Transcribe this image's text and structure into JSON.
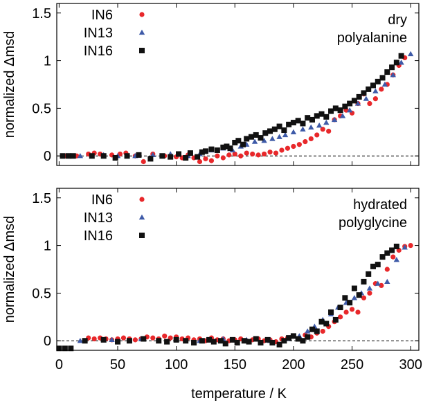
{
  "figure": {
    "xlabel": "temperature / K"
  },
  "chart_data": [
    {
      "type": "scatter",
      "annotation": [
        "dry",
        "polyalanine"
      ],
      "xlabel": "",
      "ylabel": "normalized Δmsd",
      "xlim": [
        -2,
        307
      ],
      "ylim": [
        -0.1,
        1.6
      ],
      "xticks": [
        "0",
        "50",
        "100",
        "150",
        "200",
        "250",
        "300"
      ],
      "xtick_values": [
        0,
        50,
        100,
        150,
        200,
        250,
        300
      ],
      "yticks": [
        "0",
        "0.5",
        "1",
        "1.5"
      ],
      "ytick_values": [
        0,
        0.5,
        1,
        1.5
      ],
      "reference_line": 0,
      "legend_position": "top-left",
      "series": [
        {
          "name": "IN6",
          "color": "#e8282b",
          "marker": "circle",
          "x": [
            5,
            15,
            25,
            30,
            35,
            45,
            52,
            57,
            65,
            72,
            80,
            90,
            100,
            105,
            110,
            115,
            120,
            125,
            130,
            135,
            140,
            145,
            150,
            155,
            160,
            165,
            170,
            175,
            180,
            185,
            190,
            195,
            200,
            205,
            210,
            215,
            220,
            225,
            230,
            235,
            240,
            245,
            250,
            255,
            260,
            265,
            270,
            275,
            280,
            285,
            290,
            295
          ],
          "y": [
            0.0,
            0.0,
            0.02,
            0.03,
            0.02,
            0.01,
            0.02,
            0.03,
            0.0,
            -0.06,
            0.02,
            0.0,
            -0.01,
            -0.02,
            0.01,
            -0.02,
            -0.06,
            -0.03,
            -0.05,
            0.0,
            -0.02,
            0.01,
            0.02,
            0.0,
            0.03,
            0.02,
            0.01,
            0.02,
            0.04,
            0.03,
            0.06,
            0.08,
            0.1,
            0.12,
            0.15,
            0.18,
            0.22,
            0.28,
            0.26,
            0.38,
            0.42,
            0.48,
            0.45,
            0.55,
            0.65,
            0.55,
            0.6,
            0.7,
            0.75,
            0.85,
            0.95,
            1.03
          ]
        },
        {
          "name": "IN13",
          "color": "#3e5aa8",
          "marker": "triangle",
          "x": [
            18,
            38,
            50,
            65,
            80,
            95,
            110,
            120,
            130,
            140,
            148,
            155,
            160,
            167,
            175,
            182,
            188,
            193,
            200,
            208,
            215,
            222,
            228,
            235,
            242,
            248,
            255,
            262,
            270,
            278,
            285,
            292,
            300
          ],
          "y": [
            0.0,
            0.01,
            0.0,
            0.0,
            0.01,
            0.02,
            0.0,
            0.02,
            0.06,
            0.08,
            0.06,
            0.1,
            0.12,
            0.15,
            0.16,
            0.18,
            0.2,
            0.22,
            0.25,
            0.28,
            0.3,
            0.32,
            0.35,
            0.38,
            0.42,
            0.48,
            0.55,
            0.6,
            0.68,
            0.75,
            0.85,
            0.98,
            1.07
          ]
        },
        {
          "name": "IN16",
          "color": "#111111",
          "marker": "square",
          "x": [
            3,
            8,
            12,
            28,
            38,
            48,
            58,
            68,
            78,
            88,
            95,
            102,
            108,
            112,
            118,
            122,
            125,
            130,
            135,
            140,
            143,
            146,
            150,
            153,
            157,
            160,
            164,
            168,
            172,
            176,
            180,
            184,
            188,
            192,
            196,
            200,
            204,
            208,
            212,
            216,
            220,
            224,
            228,
            232,
            236,
            240,
            244,
            248,
            252,
            256,
            260,
            264,
            268,
            272,
            276,
            280,
            284,
            288,
            292
          ],
          "y": [
            0.0,
            0.0,
            0.0,
            0.0,
            0.0,
            -0.02,
            0.0,
            0.01,
            -0.03,
            0.0,
            -0.01,
            0.02,
            -0.02,
            0.03,
            -0.01,
            0.04,
            0.05,
            0.07,
            0.06,
            0.09,
            0.1,
            0.08,
            0.14,
            0.16,
            0.12,
            0.18,
            0.2,
            0.22,
            0.19,
            0.24,
            0.26,
            0.28,
            0.31,
            0.27,
            0.33,
            0.35,
            0.37,
            0.34,
            0.4,
            0.38,
            0.42,
            0.44,
            0.41,
            0.47,
            0.5,
            0.48,
            0.52,
            0.55,
            0.58,
            0.62,
            0.66,
            0.7,
            0.74,
            0.78,
            0.82,
            0.88,
            0.93,
            0.98,
            1.05
          ]
        }
      ]
    },
    {
      "type": "scatter",
      "annotation": [
        "hydrated",
        "polyglycine"
      ],
      "xlabel": "temperature / K",
      "ylabel": "normalized Δmsd",
      "xlim": [
        -2,
        307
      ],
      "ylim": [
        -0.1,
        1.6
      ],
      "xticks": [
        "0",
        "50",
        "100",
        "150",
        "200",
        "250",
        "300"
      ],
      "xtick_values": [
        0,
        50,
        100,
        150,
        200,
        250,
        300
      ],
      "yticks": [
        "0",
        "0.5",
        "1",
        "1.5"
      ],
      "ytick_values": [
        0,
        0.5,
        1,
        1.5
      ],
      "reference_line": 0,
      "legend_position": "top-left",
      "series": [
        {
          "name": "IN6",
          "color": "#e8282b",
          "marker": "circle",
          "x": [
            25,
            30,
            35,
            40,
            45,
            50,
            55,
            60,
            65,
            70,
            75,
            80,
            85,
            90,
            95,
            100,
            105,
            110,
            115,
            120,
            125,
            130,
            135,
            140,
            145,
            150,
            155,
            160,
            165,
            170,
            175,
            180,
            185,
            190,
            195,
            200,
            205,
            210,
            215,
            220,
            225,
            230,
            235,
            240,
            245,
            250,
            255,
            260,
            265,
            270,
            275,
            280,
            285,
            290,
            295,
            300
          ],
          "y": [
            0.03,
            0.02,
            0.03,
            0.02,
            0.01,
            0.02,
            0.03,
            0.02,
            0.01,
            0.02,
            0.04,
            0.03,
            0.02,
            0.05,
            0.03,
            0.04,
            0.02,
            0.03,
            0.01,
            0.02,
            0.0,
            0.03,
            0.01,
            0.02,
            0.0,
            0.01,
            0.02,
            0.0,
            0.01,
            0.02,
            0.0,
            0.01,
            -0.01,
            0.02,
            0.03,
            0.05,
            0.02,
            0.06,
            0.04,
            0.08,
            0.1,
            0.15,
            0.2,
            0.25,
            0.3,
            0.33,
            0.3,
            0.45,
            0.5,
            0.6,
            0.58,
            0.75,
            0.88,
            0.95,
            0.99,
            1.0
          ]
        },
        {
          "name": "IN13",
          "color": "#3e5aa8",
          "marker": "triangle",
          "x": [
            18,
            45,
            70,
            100,
            120,
            140,
            160,
            180,
            195,
            205,
            212,
            218,
            225,
            232,
            238,
            245,
            252,
            258,
            265,
            272,
            280,
            288,
            295
          ],
          "y": [
            0.0,
            0.01,
            0.02,
            0.01,
            0.0,
            0.02,
            0.01,
            0.0,
            0.02,
            0.05,
            0.1,
            0.15,
            0.22,
            0.28,
            0.35,
            0.4,
            0.45,
            0.5,
            0.55,
            0.6,
            0.62,
            0.85,
            0.98
          ]
        },
        {
          "name": "IN16",
          "color": "#111111",
          "marker": "square",
          "x": [
            0,
            5,
            10,
            22,
            38,
            50,
            60,
            72,
            85,
            92,
            100,
            108,
            115,
            122,
            128,
            132,
            138,
            142,
            148,
            152,
            158,
            162,
            168,
            172,
            178,
            182,
            188,
            192,
            196,
            200,
            204,
            208,
            212,
            216,
            220,
            224,
            228,
            232,
            236,
            240,
            244,
            248,
            252,
            256,
            260,
            264,
            268,
            272,
            276,
            280,
            284,
            288
          ],
          "y": [
            -0.08,
            -0.08,
            -0.08,
            0.0,
            0.01,
            -0.01,
            0.0,
            0.02,
            0.0,
            -0.01,
            0.01,
            0.0,
            -0.02,
            0.0,
            0.01,
            -0.01,
            0.0,
            -0.03,
            0.01,
            -0.02,
            0.0,
            -0.01,
            0.02,
            -0.02,
            0.01,
            -0.02,
            -0.04,
            0.0,
            0.03,
            0.05,
            0.02,
            0.0,
            0.04,
            0.12,
            0.1,
            0.2,
            0.18,
            0.3,
            0.22,
            0.35,
            0.45,
            0.4,
            0.55,
            0.48,
            0.62,
            0.7,
            0.78,
            0.8,
            0.88,
            0.92,
            0.95,
            0.99
          ]
        }
      ]
    }
  ]
}
